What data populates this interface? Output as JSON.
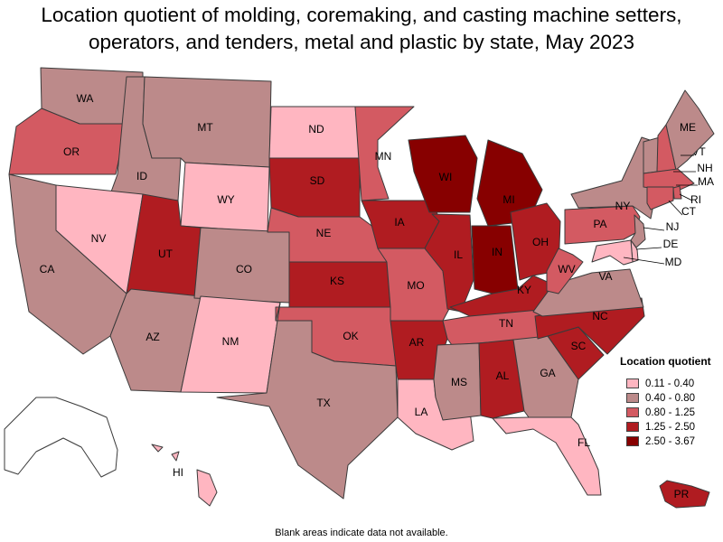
{
  "title": "Location quotient of molding, coremaking, and casting machine setters, operators, and tenders, metal and plastic by state, May 2023",
  "legend": {
    "title": "Location quotient",
    "classes": [
      {
        "label": "0.11 - 0.40",
        "color": "#ffb6c1"
      },
      {
        "label": "0.40 - 0.80",
        "color": "#bc8a8a"
      },
      {
        "label": "0.80 - 1.25",
        "color": "#d35a62"
      },
      {
        "label": "1.25 - 2.50",
        "color": "#b01c21"
      },
      {
        "label": "2.50 - 3.67",
        "color": "#870000"
      }
    ]
  },
  "footnote": "Blank areas indicate data not available.",
  "states": [
    {
      "code": "WA",
      "class": 1
    },
    {
      "code": "OR",
      "class": 2
    },
    {
      "code": "CA",
      "class": 1
    },
    {
      "code": "ID",
      "class": 1
    },
    {
      "code": "NV",
      "class": 0
    },
    {
      "code": "MT",
      "class": 1
    },
    {
      "code": "WY",
      "class": 0
    },
    {
      "code": "UT",
      "class": 3
    },
    {
      "code": "AZ",
      "class": 1
    },
    {
      "code": "CO",
      "class": 1
    },
    {
      "code": "NM",
      "class": 0
    },
    {
      "code": "ND",
      "class": 0
    },
    {
      "code": "SD",
      "class": 3
    },
    {
      "code": "NE",
      "class": 2
    },
    {
      "code": "KS",
      "class": 3
    },
    {
      "code": "OK",
      "class": 2
    },
    {
      "code": "TX",
      "class": 1
    },
    {
      "code": "MN",
      "class": 2
    },
    {
      "code": "IA",
      "class": 3
    },
    {
      "code": "MO",
      "class": 2
    },
    {
      "code": "AR",
      "class": 3
    },
    {
      "code": "LA",
      "class": 0
    },
    {
      "code": "WI",
      "class": 4
    },
    {
      "code": "IL",
      "class": 3
    },
    {
      "code": "MI",
      "class": 4
    },
    {
      "code": "IN",
      "class": 4
    },
    {
      "code": "OH",
      "class": 3
    },
    {
      "code": "KY",
      "class": 3
    },
    {
      "code": "TN",
      "class": 2
    },
    {
      "code": "MS",
      "class": 1
    },
    {
      "code": "AL",
      "class": 3
    },
    {
      "code": "GA",
      "class": 1
    },
    {
      "code": "FL",
      "class": 0
    },
    {
      "code": "SC",
      "class": 3
    },
    {
      "code": "NC",
      "class": 3
    },
    {
      "code": "VA",
      "class": 1
    },
    {
      "code": "WV",
      "class": 2
    },
    {
      "code": "PA",
      "class": 2
    },
    {
      "code": "NY",
      "class": 1
    },
    {
      "code": "VT",
      "class": 1
    },
    {
      "code": "NH",
      "class": 2
    },
    {
      "code": "ME",
      "class": 1
    },
    {
      "code": "MA",
      "class": 2
    },
    {
      "code": "RI",
      "class": 2
    },
    {
      "code": "CT",
      "class": 2
    },
    {
      "code": "NJ",
      "class": 1
    },
    {
      "code": "DE",
      "class": 0
    },
    {
      "code": "MD",
      "class": 0
    },
    {
      "code": "AK",
      "class": null
    },
    {
      "code": "HI",
      "class": 0
    },
    {
      "code": "PR",
      "class": 3
    }
  ]
}
